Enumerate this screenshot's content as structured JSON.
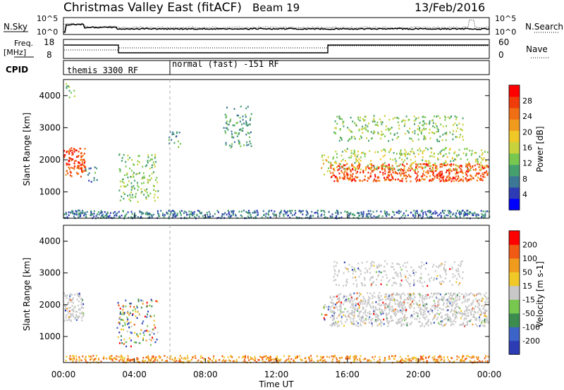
{
  "header": {
    "title": "Christmas Valley East (fitACF)",
    "beam": "Beam 19",
    "date": "13/Feb/2016"
  },
  "top_panels": {
    "nsky_label": "N.Sky",
    "nsky_ticks": [
      "10^5",
      "10^0"
    ],
    "nsearch_label": "N.Search",
    "nsearch_ticks": [
      "10^5",
      "10^0"
    ],
    "freq_label": "Freq.",
    "freq_unit": "[MHz]",
    "freq_ticks": [
      "18",
      "8"
    ],
    "nave_label": "Nave",
    "nave_ticks": [
      "60",
      "0"
    ],
    "cpid_label": "CPID",
    "cpid_segments": [
      {
        "label": "themis 3300 RF",
        "start_hour": 0.0,
        "end_hour": 6.0
      },
      {
        "label": "normal (fast) -151 RF",
        "start_hour": 6.0,
        "end_hour": 24.0
      }
    ]
  },
  "chart_data": [
    {
      "type": "heatmap",
      "title": "",
      "ylabel": "Slant Range [km]",
      "xlim_hours": [
        0,
        24
      ],
      "ylim": [
        180,
        4500
      ],
      "yticks": [
        1000,
        2000,
        3000,
        4000
      ],
      "colorbar": {
        "label": "Power [dB]",
        "ticks": [
          "4",
          "8",
          "12",
          "16",
          "20",
          "24",
          "28"
        ],
        "range": [
          0,
          30
        ],
        "colors": [
          "#0000ff",
          "#2d3cb4",
          "#3c7896",
          "#46a06e",
          "#78c850",
          "#c8d23c",
          "#f0c828",
          "#f09b1e",
          "#f06e14",
          "#f03c0a",
          "#ff0000"
        ]
      },
      "regions": [
        {
          "h0": 0.0,
          "h1": 1.2,
          "r0": 1500,
          "r1": 2400,
          "value": 26,
          "note": "bright arc"
        },
        {
          "h0": 0.1,
          "h1": 0.6,
          "r0": 3900,
          "r1": 4400,
          "value": 12
        },
        {
          "h0": 1.2,
          "h1": 1.9,
          "r0": 1300,
          "r1": 1800,
          "value": 8
        },
        {
          "h0": 3.1,
          "h1": 5.3,
          "r0": 700,
          "r1": 2200,
          "value": 12
        },
        {
          "h0": 5.9,
          "h1": 6.6,
          "r0": 2400,
          "r1": 3000,
          "value": 8
        },
        {
          "h0": 9.0,
          "h1": 10.6,
          "r0": 2400,
          "r1": 3700,
          "value": 9
        },
        {
          "h0": 14.5,
          "h1": 15.0,
          "r0": 1500,
          "r1": 2200,
          "value": 16
        },
        {
          "h0": 15.0,
          "h1": 23.9,
          "r0": 1350,
          "r1": 1900,
          "value": 26,
          "note": "main echo band"
        },
        {
          "h0": 15.0,
          "h1": 23.9,
          "r0": 1700,
          "r1": 2400,
          "value": 14
        },
        {
          "h0": 15.2,
          "h1": 22.5,
          "r0": 2600,
          "r1": 3400,
          "value": 12
        },
        {
          "h0": 0.0,
          "h1": 24.0,
          "r0": 200,
          "r1": 450,
          "value": 6,
          "note": "near-range ground scatter"
        }
      ]
    },
    {
      "type": "heatmap",
      "title": "",
      "ylabel": "Slant Range [km]",
      "xlabel": "Time UT",
      "xlim_hours": [
        0,
        24
      ],
      "xticks": [
        "00:00",
        "04:00",
        "08:00",
        "12:00",
        "16:00",
        "20:00",
        "00:00"
      ],
      "ylim": [
        180,
        4500
      ],
      "yticks": [
        1000,
        2000,
        3000,
        4000
      ],
      "colorbar": {
        "label": "Velocity [m s-1]",
        "ticks": [
          "200",
          "100",
          "50",
          "15",
          "-15",
          "-50",
          "-100",
          "-200"
        ],
        "colors": [
          "#2d3cb4",
          "#3c64c8",
          "#3c8c50",
          "#78c850",
          "#c8c8c8",
          "#f0c828",
          "#f09b1e",
          "#f05a14",
          "#ff0000"
        ]
      },
      "regions": [
        {
          "h0": 0.0,
          "h1": 1.1,
          "r0": 1500,
          "r1": 2400,
          "value": 0,
          "note": "ground scatter grey"
        },
        {
          "h0": 3.0,
          "h1": 5.3,
          "r0": 700,
          "r1": 2200,
          "value": -30
        },
        {
          "h0": 14.5,
          "h1": 15.0,
          "r0": 1500,
          "r1": 2100,
          "value": 40
        },
        {
          "h0": 15.0,
          "h1": 23.9,
          "r0": 1350,
          "r1": 2400,
          "value": 0,
          "note": "ground scatter grey"
        },
        {
          "h0": 15.2,
          "h1": 22.5,
          "r0": 2600,
          "r1": 3400,
          "value": 0
        },
        {
          "h0": 0.0,
          "h1": 24.0,
          "r0": 200,
          "r1": 420,
          "value": -80,
          "note": "near-range orange"
        }
      ]
    }
  ]
}
